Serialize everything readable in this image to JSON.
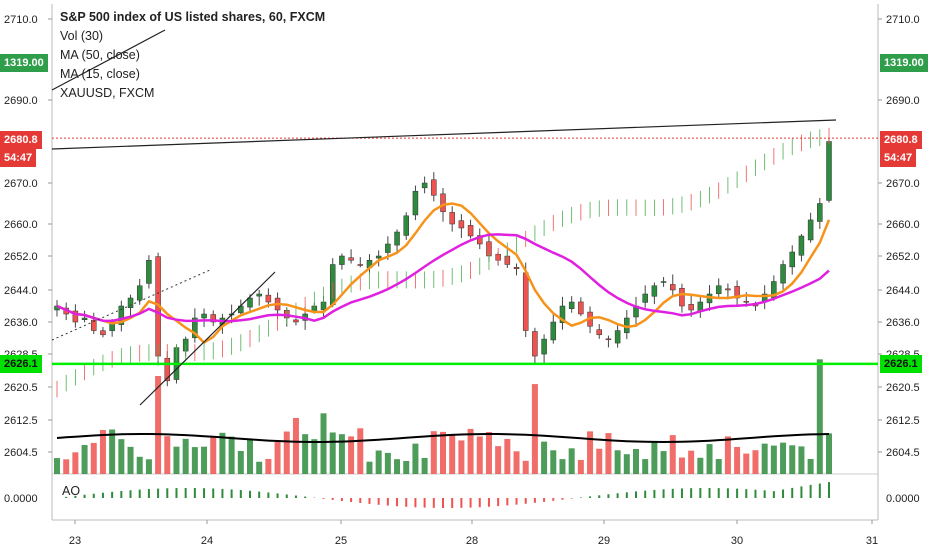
{
  "legend": {
    "title": "S&P 500 index of US listed shares, 60, FXCM",
    "vol": "Vol (30)",
    "ma50": "MA (50, close)",
    "ma15": "MA (15, close)",
    "overlay": "XAUUSD, FXCM"
  },
  "ao_label": "AO",
  "tags": {
    "left_gold": "1319.00",
    "right_gold": "1319.00",
    "left_price": "2680.8",
    "right_price": "2680.8",
    "left_countdown": "54:47",
    "right_countdown": "54:47",
    "left_hline": "2626.1",
    "right_hline": "2626.1"
  },
  "colors": {
    "up": "#26a69a",
    "up_vol": "#2e8b3d",
    "down": "#ef5350",
    "ma15": "#f7931a",
    "ma50": "#e020e0",
    "vol_ma": "#000000",
    "hline": "#00ee00",
    "price_line": "#e53935",
    "gold_tag": "#2e9e4a",
    "price_tag": "#e53935"
  },
  "chart_data": {
    "type": "candlestick",
    "title": "S&P 500 index of US listed shares, 60, FXCM",
    "y_ticks": [
      "2710.0",
      "2690.0",
      "2670.0",
      "2660.0",
      "2652.0",
      "2644.0",
      "2636.0",
      "2628.5",
      "2620.5",
      "2612.5",
      "2604.5"
    ],
    "ao_tick": "0.0000",
    "x_ticks": [
      "23",
      "24",
      "25",
      "28",
      "29",
      "30",
      "31"
    ],
    "last_price": 2680.8,
    "horizontal_level": 2626.1,
    "closes": [
      2640,
      2638,
      2636,
      2637,
      2634,
      2633,
      2636,
      2640,
      2642,
      2645,
      2651,
      2628,
      2622,
      2630,
      2632,
      2637,
      2638,
      2636,
      2637,
      2638,
      2640,
      2642,
      2643,
      2641,
      2639,
      2637,
      2636,
      2638,
      2640,
      2641,
      2650,
      2652,
      2651,
      2650,
      2651,
      2652,
      2655,
      2658,
      2662,
      2668,
      2670,
      2667,
      2663,
      2660,
      2659,
      2657,
      2655,
      2652,
      2651,
      2650,
      2649,
      2634,
      2628,
      2632,
      2636,
      2640,
      2641,
      2638,
      2635,
      2633,
      2632,
      2634,
      2637,
      2640,
      2643,
      2645,
      2646,
      2644,
      2640,
      2639,
      2641,
      2643,
      2645,
      2644,
      2642,
      2641,
      2640,
      2643,
      2646,
      2650,
      2653,
      2657,
      2661,
      2665,
      2680
    ]
  }
}
